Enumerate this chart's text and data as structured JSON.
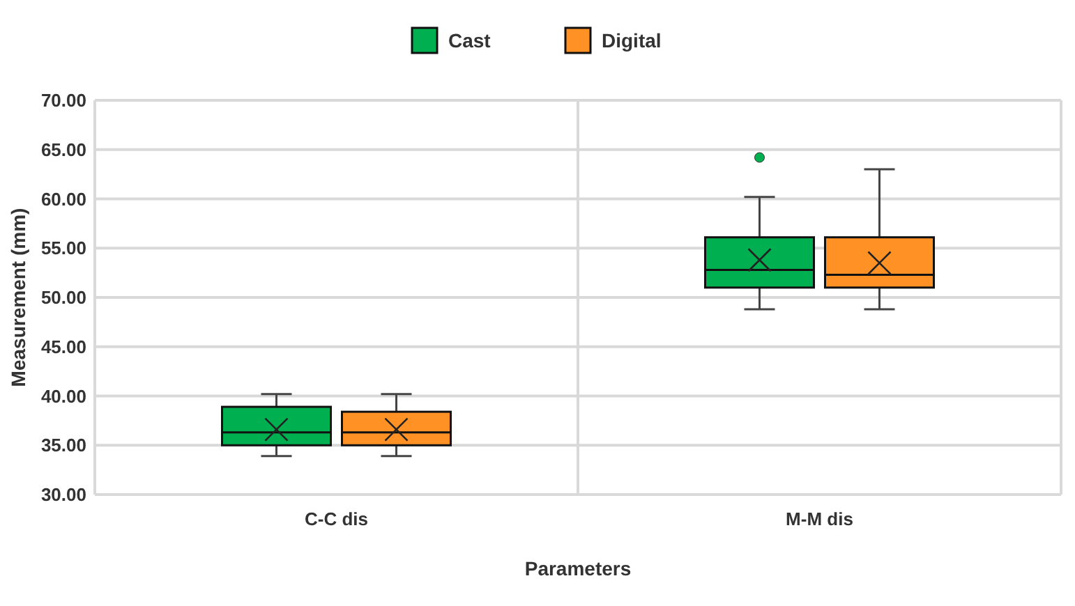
{
  "chart_data": {
    "type": "box",
    "xlabel": "Parameters",
    "ylabel": "Measurement (mm)",
    "categories": [
      "C-C dis",
      "M-M dis"
    ],
    "ylim": [
      30,
      70
    ],
    "yticks": [
      {
        "value": 30,
        "label": "30.00"
      },
      {
        "value": 35,
        "label": "35.00"
      },
      {
        "value": 40,
        "label": "40.00"
      },
      {
        "value": 45,
        "label": "45.00"
      },
      {
        "value": 50,
        "label": "50.00"
      },
      {
        "value": 55,
        "label": "55.00"
      },
      {
        "value": 60,
        "label": "60.00"
      },
      {
        "value": 65,
        "label": "65.00"
      },
      {
        "value": 70,
        "label": "70.00"
      }
    ],
    "grid": true,
    "legend": "top",
    "marker": "cross",
    "series": [
      {
        "name": "Cast",
        "color": "#00b050",
        "boxes": [
          {
            "low": 33.9,
            "q1": 35,
            "median": 36.3,
            "q3": 38.9,
            "high": 40.2,
            "mean": 36.6
          },
          {
            "low": 48.8,
            "q1": 51,
            "median": 52.8,
            "q3": 56.1,
            "high": 60.2,
            "mean": 53.8,
            "outliers": [
              64.2
            ]
          }
        ]
      },
      {
        "name": "Digital",
        "color": "#ff9125",
        "boxes": [
          {
            "low": 33.9,
            "q1": 35,
            "median": 36.3,
            "q3": 38.4,
            "high": 40.2,
            "mean": 36.6
          },
          {
            "low": 48.8,
            "q1": 51,
            "median": 52.3,
            "q3": 56.1,
            "high": 63,
            "mean": 53.5
          }
        ]
      }
    ]
  }
}
